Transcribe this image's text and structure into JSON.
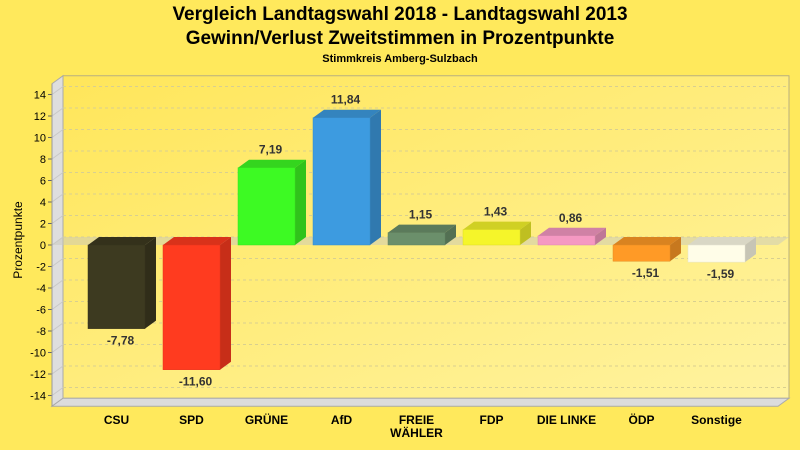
{
  "chart_data": {
    "type": "bar",
    "title": "Vergleich Landtagswahl 2018 - Landtagswahl 2013",
    "subtitle": "Gewinn/Verlust Zweitstimmen in Prozentpunkte",
    "subtitle2": "Stimmkreis Amberg-Sulzbach",
    "xlabel": "",
    "ylabel": "Prozentpunkte",
    "ylim": [
      -15,
      15
    ],
    "yticks": [
      14,
      12,
      10,
      8,
      6,
      4,
      2,
      0,
      -2,
      -4,
      -6,
      -8,
      -10,
      -12,
      -14
    ],
    "grid": true,
    "categories": [
      "CSU",
      "SPD",
      "GRÜNE",
      "AfD",
      "FREIE WÄHLER",
      "FDP",
      "DIE LINKE",
      "ÖDP",
      "Sonstige"
    ],
    "category_lines": [
      [
        "CSU"
      ],
      [
        "SPD"
      ],
      [
        "GRÜNE"
      ],
      [
        "AfD"
      ],
      [
        "FREIE",
        "WÄHLER"
      ],
      [
        "FDP"
      ],
      [
        "DIE LINKE"
      ],
      [
        "ÖDP"
      ],
      [
        "Sonstige"
      ]
    ],
    "values": [
      -7.78,
      -11.6,
      7.19,
      11.84,
      1.15,
      1.43,
      0.86,
      -1.51,
      -1.59
    ],
    "labels": [
      "-7,78",
      "-11,60",
      "7,19",
      "11,84",
      "1,15",
      "1,43",
      "0,86",
      "-1,51",
      "-1,59"
    ],
    "colors": [
      "#3d3a20",
      "#ff3b1f",
      "#3dfa23",
      "#3d9be0",
      "#6b8f6b",
      "#f5f52a",
      "#f598c2",
      "#ff9a26",
      "#fffde8"
    ]
  }
}
